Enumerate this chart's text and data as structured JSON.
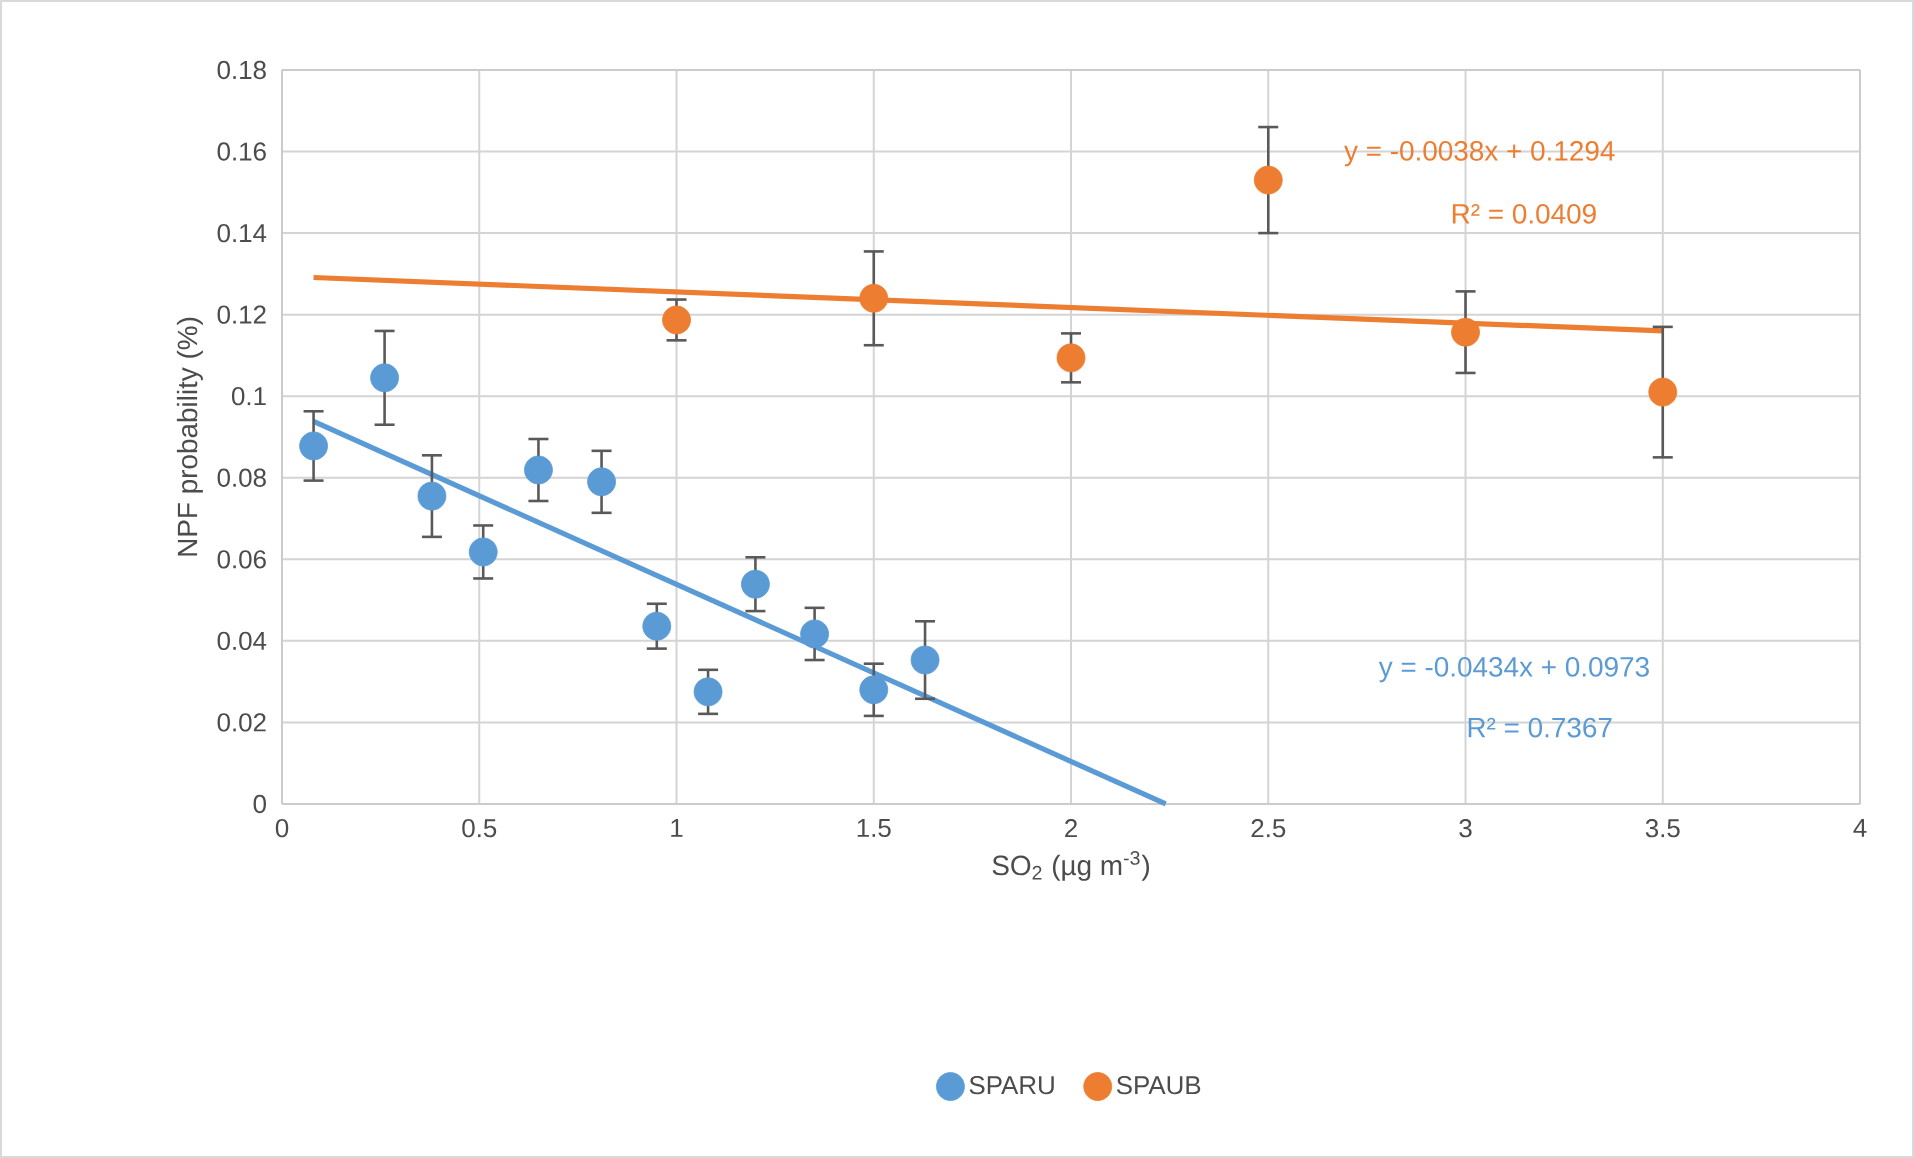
{
  "chart_data": {
    "type": "scatter",
    "xlabel": "SO$_{2}$ (µg m$^{-3}$)",
    "ylabel": "NPF probability (%)",
    "xlim": [
      0,
      4
    ],
    "xticks": [
      0,
      0.5,
      1,
      1.5,
      2,
      2.5,
      3,
      3.5,
      4
    ],
    "ylim": [
      0,
      0.18
    ],
    "yticks": [
      0,
      0.02,
      0.04,
      0.06,
      0.08,
      0.1,
      0.12,
      0.14,
      0.16,
      0.18
    ],
    "grid": true,
    "legend": "bottom",
    "series": [
      {
        "name": "SPARU",
        "marker": "circle",
        "color": "#5b9bd5",
        "x": [
          0.08,
          0.26,
          0.38,
          0.51,
          0.65,
          0.81,
          0.95,
          1.08,
          1.2,
          1.35,
          1.5,
          1.63
        ],
        "values": [
          0.0878,
          0.1045,
          0.0755,
          0.0618,
          0.0819,
          0.079,
          0.0436,
          0.0275,
          0.0539,
          0.0417,
          0.028,
          0.0353
        ],
        "errors": [
          0.0085,
          0.0115,
          0.01,
          0.0065,
          0.0076,
          0.0076,
          0.0055,
          0.0054,
          0.0066,
          0.0064,
          0.0064,
          0.0095
        ]
      },
      {
        "name": "SPAUB",
        "marker": "circle",
        "color": "#ed7d31",
        "x": [
          1,
          1.5,
          2,
          2.5,
          3,
          3.5
        ],
        "values": [
          0.1187,
          0.124,
          0.1094,
          0.153,
          0.1157,
          0.101
        ],
        "errors": [
          0.005,
          0.0115,
          0.006,
          0.013,
          0.01,
          0.016
        ]
      },
      {
        "type": "line",
        "marker": "none",
        "color": "#5b9bd5",
        "x": [
          0.08,
          2.24
        ],
        "values": [
          0.0938,
          0
        ]
      },
      {
        "type": "line",
        "marker": "none",
        "color": "#ed7d31",
        "x": [
          0.08,
          3.5
        ],
        "values": [
          0.1291,
          0.116
        ]
      }
    ],
    "annotations": [
      "y = -0.0434x + 0.0973",
      "R² = 0.7367",
      "y = -0.0038x + 0.1294",
      "R² = 0.0409"
    ]
  }
}
